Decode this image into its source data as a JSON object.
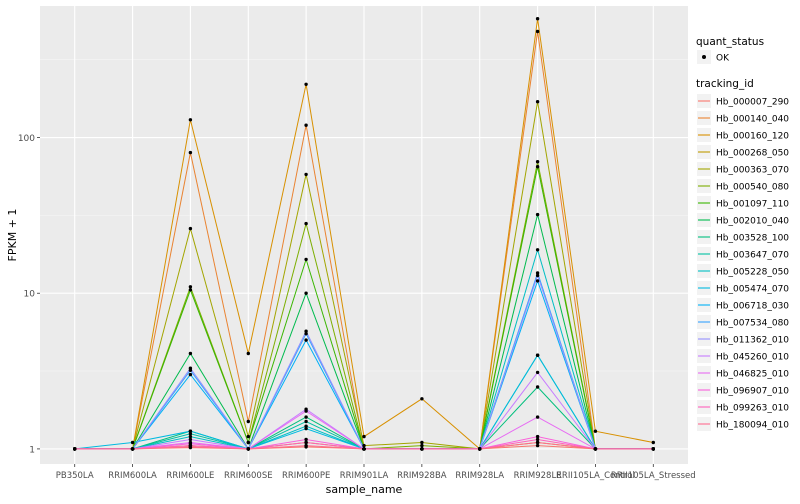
{
  "chart_data": {
    "type": "line",
    "xlabel": "sample_name",
    "ylabel": "FPKM + 1",
    "y_scale": "log10",
    "ylim": [
      0.8,
      700
    ],
    "y_ticks": [
      1,
      10,
      100
    ],
    "y_tick_labels": [
      "1",
      "10",
      "100"
    ],
    "grid": true,
    "legend_position": "right",
    "categories": [
      "PB350LA",
      "RRIM600LA",
      "RRIM600LE",
      "RRIM600SE",
      "RRIM600PE",
      "RRIM901LA",
      "RRIM928BA",
      "RRIM928LA",
      "RRIM928LE",
      "RRII105LA_Control",
      "RRII105LA_Stressed"
    ],
    "legend_shape": {
      "title": "quant_status",
      "items": [
        "OK"
      ]
    },
    "legend_color_title": "tracking_id",
    "series": [
      {
        "name": "Hb_000007_290",
        "color": "#F8766D",
        "values": [
          1.0,
          1.0,
          1.02,
          1.0,
          1.03,
          1.0,
          1.0,
          1.0,
          1.05,
          1.0,
          1.0
        ]
      },
      {
        "name": "Hb_000140_040",
        "color": "#EA8331",
        "values": [
          1.0,
          1.0,
          80,
          1.5,
          120,
          1.0,
          1.0,
          1.0,
          480,
          1.0,
          1.0
        ]
      },
      {
        "name": "Hb_000160_120",
        "color": "#D89000",
        "values": [
          1.0,
          1.0,
          130,
          4.1,
          220,
          1.2,
          2.1,
          1.0,
          580,
          1.3,
          1.1
        ]
      },
      {
        "name": "Hb_000268_050",
        "color": "#C09B00",
        "values": [
          1.0,
          1.0,
          1.05,
          1.0,
          1.1,
          1.0,
          1.0,
          1.0,
          1.1,
          1.0,
          1.0
        ]
      },
      {
        "name": "Hb_000363_070",
        "color": "#A3A500",
        "values": [
          1.0,
          1.0,
          26,
          1.2,
          58,
          1.05,
          1.1,
          1.0,
          170,
          1.0,
          1.0
        ]
      },
      {
        "name": "Hb_000540_080",
        "color": "#7CAE00",
        "values": [
          1.0,
          1.0,
          11,
          1.1,
          28,
          1.0,
          1.05,
          1.0,
          70,
          1.0,
          1.0
        ]
      },
      {
        "name": "Hb_001097_110",
        "color": "#39B600",
        "values": [
          1.0,
          1.0,
          10.5,
          1.1,
          16.5,
          1.0,
          1.0,
          1.0,
          65,
          1.0,
          1.0
        ]
      },
      {
        "name": "Hb_002010_040",
        "color": "#00BB4E",
        "values": [
          1.0,
          1.0,
          4.1,
          1.0,
          10,
          1.0,
          1.0,
          1.0,
          32,
          1.0,
          1.0
        ]
      },
      {
        "name": "Hb_003528_100",
        "color": "#00BF7D",
        "values": [
          1.0,
          1.0,
          1.3,
          1.0,
          1.6,
          1.0,
          1.0,
          1.0,
          2.5,
          1.0,
          1.0
        ]
      },
      {
        "name": "Hb_003647_070",
        "color": "#00C1A3",
        "values": [
          1.0,
          1.0,
          1.25,
          1.0,
          1.5,
          1.0,
          1.0,
          1.0,
          4.0,
          1.0,
          1.0
        ]
      },
      {
        "name": "Hb_005228_050",
        "color": "#00BFC4",
        "values": [
          1.0,
          1.0,
          1.2,
          1.0,
          1.4,
          1.0,
          1.0,
          1.0,
          19,
          1.0,
          1.0
        ]
      },
      {
        "name": "Hb_005474_070",
        "color": "#00BAE0",
        "values": [
          1.0,
          1.1,
          1.3,
          1.0,
          1.35,
          1.0,
          1.0,
          1.0,
          4.0,
          1.0,
          1.0
        ]
      },
      {
        "name": "Hb_006718_030",
        "color": "#00B0F6",
        "values": [
          1.0,
          1.0,
          3.0,
          1.0,
          5.0,
          1.0,
          1.0,
          1.0,
          12,
          1.0,
          1.0
        ]
      },
      {
        "name": "Hb_007534_080",
        "color": "#35A2FF",
        "values": [
          1.0,
          1.0,
          3.2,
          1.0,
          5.5,
          1.0,
          1.0,
          1.0,
          13.5,
          1.0,
          1.0
        ]
      },
      {
        "name": "Hb_011362_010",
        "color": "#9590FF",
        "values": [
          1.0,
          1.0,
          3.3,
          1.0,
          5.7,
          1.0,
          1.0,
          1.0,
          13,
          1.0,
          1.0
        ]
      },
      {
        "name": "Hb_045260_010",
        "color": "#C77CFF",
        "values": [
          1.0,
          1.0,
          1.15,
          1.0,
          1.8,
          1.0,
          1.0,
          1.0,
          3.1,
          1.0,
          1.0
        ]
      },
      {
        "name": "Hb_046825_010",
        "color": "#E76BF3",
        "values": [
          1.0,
          1.0,
          1.1,
          1.0,
          1.75,
          1.0,
          1.0,
          1.0,
          1.6,
          1.0,
          1.0
        ]
      },
      {
        "name": "Hb_096907_010",
        "color": "#FA62DB",
        "values": [
          1.0,
          1.0,
          1.08,
          1.0,
          1.15,
          1.0,
          1.0,
          1.0,
          1.2,
          1.0,
          1.0
        ]
      },
      {
        "name": "Hb_099263_010",
        "color": "#FF62BC",
        "values": [
          1.0,
          1.0,
          1.05,
          1.0,
          1.1,
          1.0,
          1.0,
          1.0,
          1.15,
          1.0,
          1.0
        ]
      },
      {
        "name": "Hb_180094_010",
        "color": "#FF6C91",
        "values": [
          1.0,
          1.0,
          1.03,
          1.0,
          1.05,
          1.0,
          1.0,
          1.0,
          1.1,
          1.0,
          1.0
        ]
      }
    ]
  }
}
